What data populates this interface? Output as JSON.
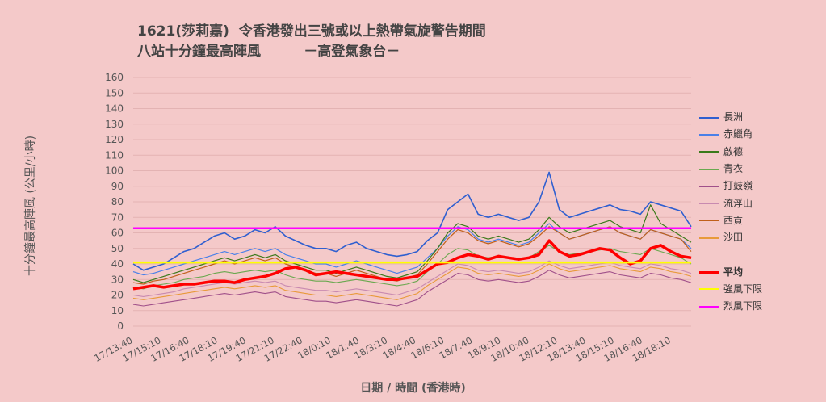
{
  "chart_data": {
    "type": "line",
    "title_line1": "1621(莎莉嘉)  令香港發出三號或以上熱帶氣旋警告期間",
    "title_line2": "八站十分鐘最高陣風         －高登氣象台－",
    "ylabel": "十分鐘最高陣風  (公里/小時)",
    "xlabel": "日期 / 時間 (香港時)",
    "ylim": [
      0,
      160
    ],
    "yticks": [
      0,
      10,
      20,
      30,
      40,
      50,
      60,
      70,
      80,
      90,
      100,
      110,
      120,
      130,
      140,
      150,
      160
    ],
    "xticks": [
      "17/13:40",
      "17/15:10",
      "17/16:40",
      "17/18:10",
      "17/19:40",
      "17/21:10",
      "17/22:40",
      "18/0:10",
      "18/1:40",
      "18/3:10",
      "18/4:40",
      "18/6:10",
      "18/7:40",
      "18/9:10",
      "18/10:40",
      "18/12:10",
      "18/13:40",
      "18/15:10",
      "18/16:40",
      "18/18:10"
    ],
    "grid": true,
    "legend_position": "right",
    "series": [
      {
        "name": "長洲",
        "color": "#2f5fd0",
        "width": 1.6,
        "values": [
          40,
          36,
          38,
          40,
          44,
          48,
          50,
          54,
          58,
          60,
          56,
          58,
          62,
          60,
          64,
          58,
          55,
          52,
          50,
          50,
          48,
          52,
          54,
          50,
          48,
          46,
          45,
          46,
          48,
          55,
          60,
          75,
          80,
          85,
          72,
          70,
          72,
          70,
          68,
          70,
          80,
          99,
          75,
          70,
          72,
          74,
          76,
          78,
          75,
          74,
          72,
          80,
          78,
          76,
          74,
          64
        ]
      },
      {
        "name": "赤鱲角",
        "color": "#4a80e8",
        "width": 1.2,
        "values": [
          35,
          33,
          34,
          36,
          38,
          40,
          42,
          44,
          46,
          48,
          46,
          48,
          50,
          48,
          50,
          46,
          44,
          42,
          40,
          40,
          38,
          40,
          42,
          40,
          38,
          36,
          34,
          36,
          38,
          44,
          50,
          58,
          64,
          62,
          56,
          54,
          56,
          54,
          52,
          54,
          60,
          66,
          60,
          56,
          58,
          60,
          62,
          64,
          60,
          58,
          56,
          62,
          60,
          58,
          56,
          50
        ]
      },
      {
        "name": "啟德",
        "color": "#3a7a1a",
        "width": 1.2,
        "values": [
          30,
          28,
          30,
          32,
          34,
          36,
          38,
          40,
          42,
          44,
          42,
          44,
          46,
          44,
          46,
          42,
          40,
          38,
          36,
          36,
          34,
          36,
          38,
          36,
          34,
          32,
          31,
          33,
          35,
          42,
          50,
          60,
          66,
          64,
          58,
          56,
          58,
          56,
          54,
          56,
          62,
          70,
          64,
          60,
          62,
          64,
          66,
          68,
          64,
          62,
          60,
          78,
          66,
          62,
          58,
          54
        ]
      },
      {
        "name": "青衣",
        "color": "#6aa84f",
        "width": 1.1,
        "values": [
          25,
          24,
          26,
          27,
          28,
          30,
          31,
          32,
          34,
          35,
          34,
          35,
          36,
          35,
          36,
          33,
          31,
          30,
          29,
          29,
          28,
          29,
          30,
          29,
          28,
          27,
          26,
          27,
          29,
          35,
          40,
          46,
          50,
          49,
          45,
          44,
          45,
          44,
          43,
          44,
          48,
          52,
          48,
          46,
          47,
          48,
          49,
          50,
          48,
          47,
          46,
          50,
          48,
          46,
          44,
          40
        ]
      },
      {
        "name": "打鼓嶺",
        "color": "#a0508a",
        "width": 1.1,
        "values": [
          14,
          13,
          14,
          15,
          16,
          17,
          18,
          19,
          20,
          21,
          20,
          21,
          22,
          21,
          22,
          19,
          18,
          17,
          16,
          16,
          15,
          16,
          17,
          16,
          15,
          14,
          13,
          15,
          17,
          22,
          26,
          30,
          34,
          33,
          30,
          29,
          30,
          29,
          28,
          29,
          32,
          36,
          33,
          31,
          32,
          33,
          34,
          35,
          33,
          32,
          31,
          34,
          33,
          31,
          30,
          28
        ]
      },
      {
        "name": "流浮山",
        "color": "#c88ab0",
        "width": 1.1,
        "values": [
          20,
          19,
          20,
          21,
          22,
          24,
          25,
          26,
          27,
          28,
          27,
          28,
          29,
          28,
          29,
          26,
          25,
          24,
          23,
          23,
          22,
          23,
          24,
          23,
          22,
          21,
          20,
          22,
          24,
          28,
          32,
          36,
          40,
          39,
          36,
          35,
          36,
          35,
          34,
          35,
          38,
          42,
          39,
          37,
          38,
          39,
          40,
          41,
          39,
          38,
          37,
          40,
          39,
          37,
          36,
          34
        ]
      },
      {
        "name": "西貢",
        "color": "#c0601a",
        "width": 1.2,
        "values": [
          28,
          27,
          29,
          30,
          32,
          34,
          36,
          38,
          40,
          42,
          40,
          42,
          44,
          42,
          44,
          40,
          38,
          36,
          34,
          34,
          32,
          34,
          36,
          34,
          32,
          30,
          29,
          31,
          33,
          40,
          48,
          56,
          62,
          60,
          55,
          53,
          55,
          53,
          51,
          53,
          58,
          64,
          60,
          56,
          58,
          60,
          62,
          64,
          60,
          58,
          56,
          62,
          60,
          58,
          56,
          48
        ]
      },
      {
        "name": "沙田",
        "color": "#e89a3a",
        "width": 1.1,
        "values": [
          18,
          17,
          18,
          19,
          20,
          21,
          22,
          23,
          24,
          25,
          24,
          25,
          26,
          25,
          26,
          23,
          22,
          21,
          20,
          20,
          19,
          20,
          21,
          20,
          19,
          18,
          17,
          19,
          21,
          26,
          30,
          34,
          38,
          37,
          34,
          33,
          34,
          33,
          32,
          33,
          36,
          40,
          37,
          35,
          36,
          37,
          38,
          39,
          37,
          36,
          35,
          38,
          37,
          35,
          34,
          32
        ]
      },
      {
        "name": "平均",
        "color": "#ff0000",
        "width": 3.5,
        "values": [
          24,
          25,
          26,
          25,
          26,
          27,
          27,
          28,
          29,
          29,
          28,
          30,
          31,
          32,
          34,
          37,
          38,
          36,
          33,
          34,
          35,
          34,
          33,
          32,
          31,
          30,
          30,
          31,
          32,
          36,
          40,
          41,
          44,
          46,
          45,
          43,
          45,
          44,
          43,
          44,
          46,
          55,
          48,
          45,
          46,
          48,
          50,
          49,
          44,
          40,
          42,
          50,
          52,
          48,
          45,
          44
        ]
      },
      {
        "name": "強風下限",
        "color": "#ffff00",
        "width": 2.5,
        "values": [
          41,
          41
        ]
      },
      {
        "name": "烈風下限",
        "color": "#ff00ff",
        "width": 2.5,
        "values": [
          63,
          63
        ]
      }
    ]
  }
}
